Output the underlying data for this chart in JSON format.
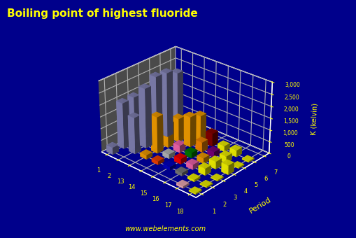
{
  "title": "Boiling point of highest fluoride",
  "zlabel": "K (kelvin)",
  "period_label": "Period",
  "website": "www.webelements.com",
  "bg_color": "#00008B",
  "floor_color": "#4a4a4a",
  "title_color": "#FFFF00",
  "tick_color": "#FFFF00",
  "group_labels": [
    "1",
    "2",
    "13",
    "14",
    "15",
    "16",
    "17",
    "18"
  ],
  "period_labels": [
    "1",
    "2",
    "3",
    "4",
    "5",
    "6",
    "7"
  ],
  "zticks": [
    0,
    500,
    1000,
    1500,
    2000,
    2500,
    3000
  ],
  "ztick_labels": [
    "0",
    "500",
    "1,000",
    "1,500",
    "2,000",
    "2,500",
    "3,000"
  ],
  "bars": [
    {
      "group": 1,
      "period": 1,
      "value": 293,
      "color": "#8888BB"
    },
    {
      "group": 1,
      "period": 2,
      "value": 1949,
      "color": "#8888BB"
    },
    {
      "group": 1,
      "period": 3,
      "value": 1968,
      "color": "#8888BB"
    },
    {
      "group": 1,
      "period": 4,
      "value": 1775,
      "color": "#8888BB"
    },
    {
      "group": 1,
      "period": 5,
      "value": 1681,
      "color": "#8888BB"
    },
    {
      "group": 1,
      "period": 6,
      "value": 1524,
      "color": "#8888BB"
    },
    {
      "group": 1,
      "period": 7,
      "value": 1173,
      "color": "#8888BB"
    },
    {
      "group": 2,
      "period": 2,
      "value": 1546,
      "color": "#8888BB"
    },
    {
      "group": 2,
      "period": 3,
      "value": 2534,
      "color": "#8888BB"
    },
    {
      "group": 2,
      "period": 4,
      "value": 2806,
      "color": "#8888BB"
    },
    {
      "group": 2,
      "period": 5,
      "value": 2750,
      "color": "#8888BB"
    },
    {
      "group": 2,
      "period": 6,
      "value": 2533,
      "color": "#8888BB"
    },
    {
      "group": 13,
      "period": 2,
      "value": 173,
      "color": "#FFA500"
    },
    {
      "group": 13,
      "period": 3,
      "value": 1549,
      "color": "#FFA500"
    },
    {
      "group": 13,
      "period": 4,
      "value": 1000,
      "color": "#FFA500"
    },
    {
      "group": 13,
      "period": 5,
      "value": 1000,
      "color": "#FFA500"
    },
    {
      "group": 13,
      "period": 6,
      "value": 823,
      "color": "#FFA500"
    },
    {
      "group": 14,
      "period": 2,
      "value": 145,
      "color": "#FF4500"
    },
    {
      "group": 14,
      "period": 3,
      "value": 187,
      "color": "#C0C0C0"
    },
    {
      "group": 14,
      "period": 4,
      "value": 301,
      "color": "#FF69B4"
    },
    {
      "group": 14,
      "period": 5,
      "value": 1290,
      "color": "#FFA500"
    },
    {
      "group": 14,
      "period": 6,
      "value": 1100,
      "color": "#FFA500"
    },
    {
      "group": 15,
      "period": 2,
      "value": 144,
      "color": "#0000CD"
    },
    {
      "group": 15,
      "period": 3,
      "value": 220,
      "color": "#FF0000"
    },
    {
      "group": 15,
      "period": 4,
      "value": 221,
      "color": "#008000"
    },
    {
      "group": 15,
      "period": 5,
      "value": 422,
      "color": "#FF8C00"
    },
    {
      "group": 15,
      "period": 6,
      "value": 550,
      "color": "#8B0000"
    },
    {
      "group": 16,
      "period": 2,
      "value": 128,
      "color": "#808080"
    },
    {
      "group": 16,
      "period": 3,
      "value": 209,
      "color": "#FF69B4"
    },
    {
      "group": 16,
      "period": 4,
      "value": 226,
      "color": "#FFA500"
    },
    {
      "group": 16,
      "period": 5,
      "value": 235,
      "color": "#800080"
    },
    {
      "group": 16,
      "period": 6,
      "value": 235,
      "color": "#FFFF00"
    },
    {
      "group": 17,
      "period": 1,
      "value": 85,
      "color": "#FFB6C1"
    },
    {
      "group": 17,
      "period": 2,
      "value": 85,
      "color": "#FFFF00"
    },
    {
      "group": 17,
      "period": 3,
      "value": 285,
      "color": "#FFFF00"
    },
    {
      "group": 17,
      "period": 4,
      "value": 314,
      "color": "#FFFF00"
    },
    {
      "group": 17,
      "period": 5,
      "value": 277,
      "color": "#FFFF00"
    },
    {
      "group": 17,
      "period": 6,
      "value": 277,
      "color": "#FFFF00"
    },
    {
      "group": 18,
      "period": 1,
      "value": 50,
      "color": "#FFFF00"
    },
    {
      "group": 18,
      "period": 2,
      "value": 50,
      "color": "#FFFF00"
    },
    {
      "group": 18,
      "period": 3,
      "value": 50,
      "color": "#FFFF00"
    },
    {
      "group": 18,
      "period": 4,
      "value": 390,
      "color": "#FFFF00"
    },
    {
      "group": 18,
      "period": 5,
      "value": 50,
      "color": "#FFFF00"
    },
    {
      "group": 18,
      "period": 6,
      "value": 50,
      "color": "#FFFF00"
    }
  ]
}
